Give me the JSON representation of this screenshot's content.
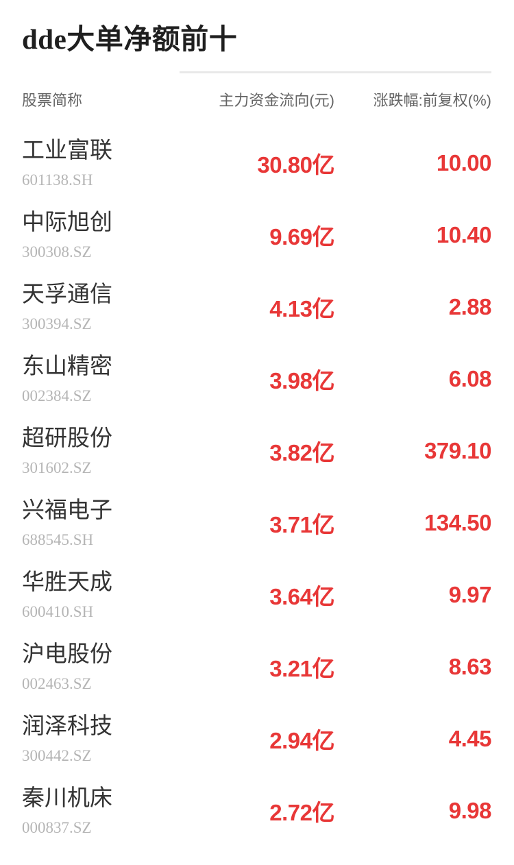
{
  "title": "dde大单净额前十",
  "colors": {
    "red": "#e83737",
    "divider": "#e9e9e9",
    "title": "#1f1f1f",
    "header": "#646464",
    "stock_name": "#333333",
    "stock_code": "#b5b5b5"
  },
  "table": {
    "columns": {
      "name": "股票简称",
      "flow": "主力资金流向(元)",
      "change": "涨跌幅:前复权(%)"
    },
    "rows": [
      {
        "name": "工业富联",
        "code": "601138.SH",
        "flow": "30.80亿",
        "change": "10.00"
      },
      {
        "name": "中际旭创",
        "code": "300308.SZ",
        "flow": "9.69亿",
        "change": "10.40"
      },
      {
        "name": "天孚通信",
        "code": "300394.SZ",
        "flow": "4.13亿",
        "change": "2.88"
      },
      {
        "name": "东山精密",
        "code": "002384.SZ",
        "flow": "3.98亿",
        "change": "6.08"
      },
      {
        "name": "超研股份",
        "code": "301602.SZ",
        "flow": "3.82亿",
        "change": "379.10"
      },
      {
        "name": "兴福电子",
        "code": "688545.SH",
        "flow": "3.71亿",
        "change": "134.50"
      },
      {
        "name": "华胜天成",
        "code": "600410.SH",
        "flow": "3.64亿",
        "change": "9.97"
      },
      {
        "name": "沪电股份",
        "code": "002463.SZ",
        "flow": "3.21亿",
        "change": "8.63"
      },
      {
        "name": "润泽科技",
        "code": "300442.SZ",
        "flow": "2.94亿",
        "change": "4.45"
      },
      {
        "name": "秦川机床",
        "code": "000837.SZ",
        "flow": "2.72亿",
        "change": "9.98"
      }
    ]
  }
}
